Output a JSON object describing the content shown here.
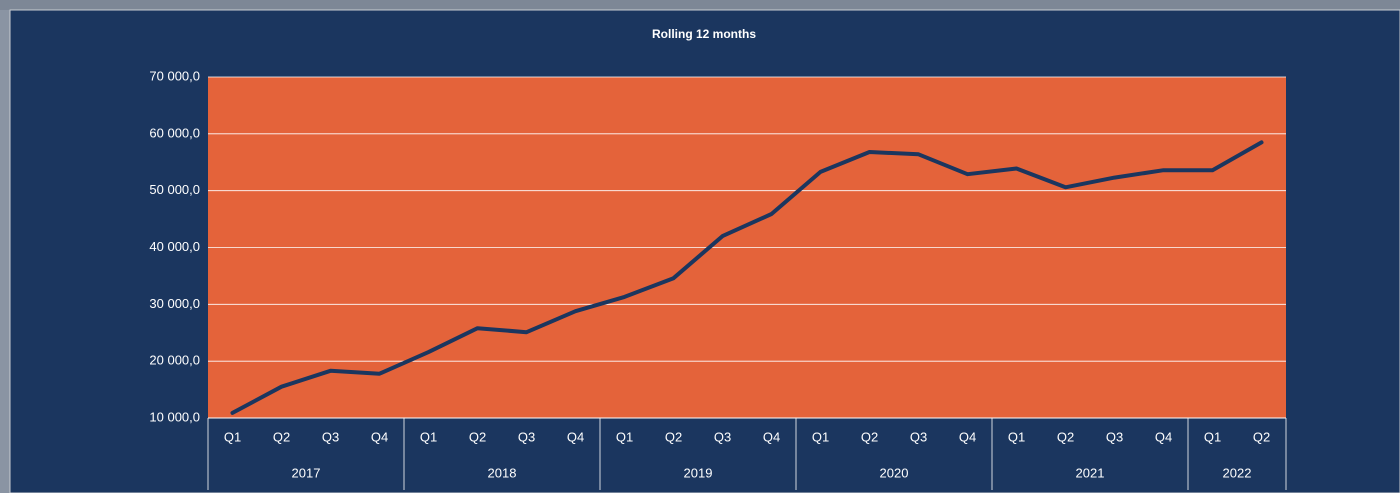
{
  "chart_data": {
    "type": "line",
    "title": "Rolling 12 months",
    "year_groups": [
      {
        "name": "2017",
        "quarters": [
          "Q1",
          "Q2",
          "Q3",
          "Q4"
        ]
      },
      {
        "name": "2018",
        "quarters": [
          "Q1",
          "Q2",
          "Q3",
          "Q4"
        ]
      },
      {
        "name": "2019",
        "quarters": [
          "Q1",
          "Q2",
          "Q3",
          "Q4"
        ]
      },
      {
        "name": "2020",
        "quarters": [
          "Q1",
          "Q2",
          "Q3",
          "Q4"
        ]
      },
      {
        "name": "2021",
        "quarters": [
          "Q1",
          "Q2",
          "Q3",
          "Q4"
        ]
      },
      {
        "name": "2022",
        "quarters": [
          "Q1",
          "Q2"
        ]
      }
    ],
    "values": [
      10900,
      15500,
      18300,
      17800,
      21600,
      25800,
      25100,
      28800,
      31300,
      34600,
      42000,
      45900,
      53300,
      56800,
      56400,
      52900,
      53900,
      50600,
      52300,
      53600,
      53600,
      58500
    ],
    "color": "#1b365f",
    "plot_color": "#e4633a",
    "grid": true,
    "ylim": [
      10000,
      70000
    ],
    "yticks": [
      {
        "value": 10000,
        "label": "10 000,0"
      },
      {
        "value": 20000,
        "label": "20 000,0"
      },
      {
        "value": 30000,
        "label": "30 000,0"
      },
      {
        "value": 40000,
        "label": "40 000,0"
      },
      {
        "value": 50000,
        "label": "50 000,0"
      },
      {
        "value": 60000,
        "label": "60 000,0"
      },
      {
        "value": 70000,
        "label": "70 000,0"
      }
    ]
  }
}
